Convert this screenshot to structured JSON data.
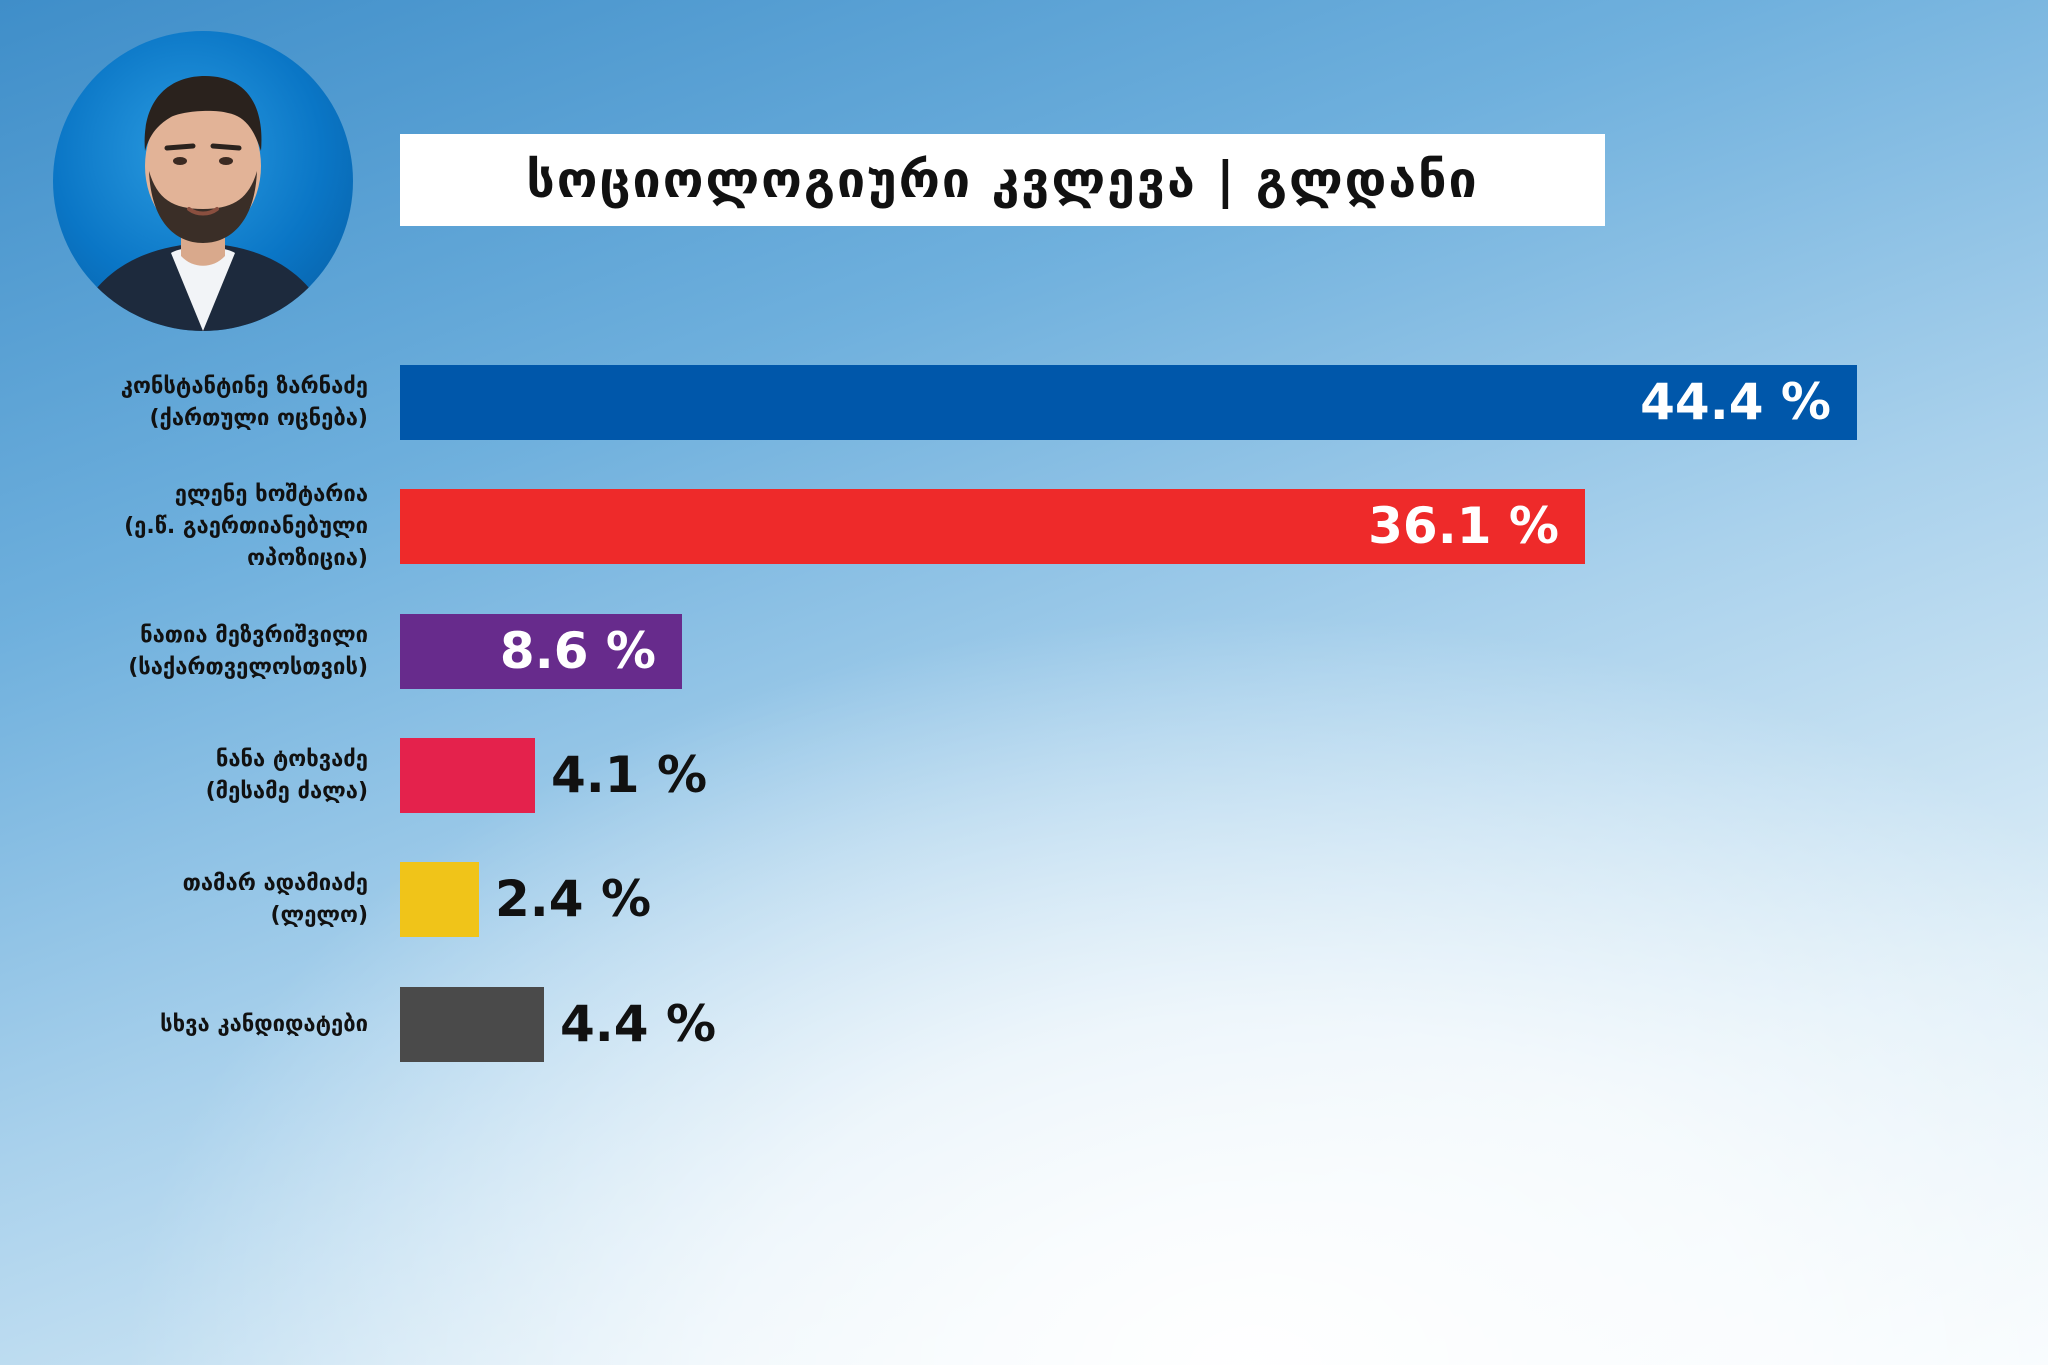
{
  "title": "სოციოლოგიური კვლევა | გლდანი",
  "chart_data": {
    "type": "bar",
    "orientation": "horizontal",
    "title": "სოციოლოგიური კვლევა | გლდანი",
    "xlim": [
      0,
      44.4
    ],
    "grid": false,
    "categories": [
      [
        "კონსტანტინე ზარნაძე",
        "(ქართული ოცნება)"
      ],
      [
        "ელენე ხოშტარია",
        "(ე.წ. გაერთიანებული",
        "ოპოზიცია)"
      ],
      [
        "ნათია მეზვრიშვილი",
        "(საქართველოსთვის)"
      ],
      [
        "ნანა ტოხვაძე",
        "(მესამე ძალა)"
      ],
      [
        "თამარ ადამიაძე",
        "(ლელო)"
      ],
      [
        "სხვა კანდიდატები"
      ]
    ],
    "values": [
      44.4,
      36.1,
      8.6,
      4.1,
      2.4,
      4.4
    ],
    "value_labels": [
      "44.4 %",
      "36.1 %",
      "8.6 %",
      "4.1 %",
      "2.4 %",
      "4.4 %"
    ],
    "colors": [
      "#0057aa",
      "#ee2a2a",
      "#672b8c",
      "#e4224c",
      "#f0c419",
      "#4a4a4a"
    ],
    "label_inside": [
      true,
      true,
      true,
      false,
      false,
      false
    ]
  }
}
